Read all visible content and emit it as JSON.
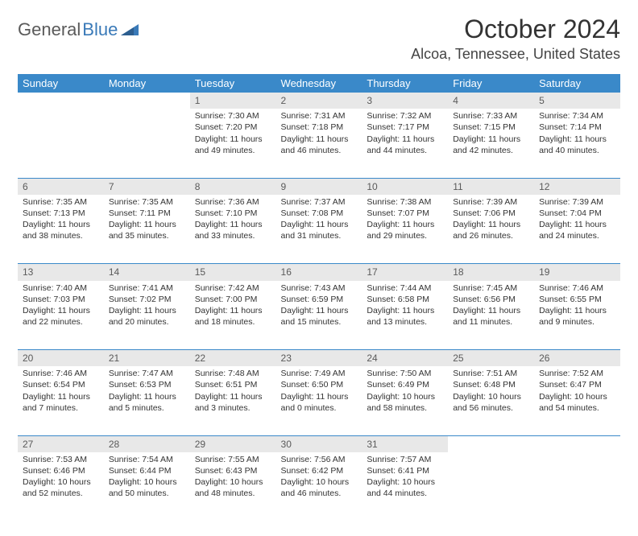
{
  "logo": {
    "part1": "General",
    "part2": "Blue"
  },
  "title": "October 2024",
  "location": "Alcoa, Tennessee, United States",
  "colors": {
    "header_bg": "#3a89c9",
    "header_text": "#ffffff",
    "daynum_bg": "#e8e8e8",
    "divider": "#3a89c9",
    "body_text": "#333333",
    "location_text": "#444444"
  },
  "typography": {
    "title_fontsize": 32,
    "location_fontsize": 18,
    "weekday_fontsize": 13,
    "daynum_fontsize": 12,
    "cell_fontsize": 10.5
  },
  "weekdays": [
    "Sunday",
    "Monday",
    "Tuesday",
    "Wednesday",
    "Thursday",
    "Friday",
    "Saturday"
  ],
  "weeks": [
    [
      null,
      null,
      {
        "n": "1",
        "sr": "Sunrise: 7:30 AM",
        "ss": "Sunset: 7:20 PM",
        "d1": "Daylight: 11 hours",
        "d2": "and 49 minutes."
      },
      {
        "n": "2",
        "sr": "Sunrise: 7:31 AM",
        "ss": "Sunset: 7:18 PM",
        "d1": "Daylight: 11 hours",
        "d2": "and 46 minutes."
      },
      {
        "n": "3",
        "sr": "Sunrise: 7:32 AM",
        "ss": "Sunset: 7:17 PM",
        "d1": "Daylight: 11 hours",
        "d2": "and 44 minutes."
      },
      {
        "n": "4",
        "sr": "Sunrise: 7:33 AM",
        "ss": "Sunset: 7:15 PM",
        "d1": "Daylight: 11 hours",
        "d2": "and 42 minutes."
      },
      {
        "n": "5",
        "sr": "Sunrise: 7:34 AM",
        "ss": "Sunset: 7:14 PM",
        "d1": "Daylight: 11 hours",
        "d2": "and 40 minutes."
      }
    ],
    [
      {
        "n": "6",
        "sr": "Sunrise: 7:35 AM",
        "ss": "Sunset: 7:13 PM",
        "d1": "Daylight: 11 hours",
        "d2": "and 38 minutes."
      },
      {
        "n": "7",
        "sr": "Sunrise: 7:35 AM",
        "ss": "Sunset: 7:11 PM",
        "d1": "Daylight: 11 hours",
        "d2": "and 35 minutes."
      },
      {
        "n": "8",
        "sr": "Sunrise: 7:36 AM",
        "ss": "Sunset: 7:10 PM",
        "d1": "Daylight: 11 hours",
        "d2": "and 33 minutes."
      },
      {
        "n": "9",
        "sr": "Sunrise: 7:37 AM",
        "ss": "Sunset: 7:08 PM",
        "d1": "Daylight: 11 hours",
        "d2": "and 31 minutes."
      },
      {
        "n": "10",
        "sr": "Sunrise: 7:38 AM",
        "ss": "Sunset: 7:07 PM",
        "d1": "Daylight: 11 hours",
        "d2": "and 29 minutes."
      },
      {
        "n": "11",
        "sr": "Sunrise: 7:39 AM",
        "ss": "Sunset: 7:06 PM",
        "d1": "Daylight: 11 hours",
        "d2": "and 26 minutes."
      },
      {
        "n": "12",
        "sr": "Sunrise: 7:39 AM",
        "ss": "Sunset: 7:04 PM",
        "d1": "Daylight: 11 hours",
        "d2": "and 24 minutes."
      }
    ],
    [
      {
        "n": "13",
        "sr": "Sunrise: 7:40 AM",
        "ss": "Sunset: 7:03 PM",
        "d1": "Daylight: 11 hours",
        "d2": "and 22 minutes."
      },
      {
        "n": "14",
        "sr": "Sunrise: 7:41 AM",
        "ss": "Sunset: 7:02 PM",
        "d1": "Daylight: 11 hours",
        "d2": "and 20 minutes."
      },
      {
        "n": "15",
        "sr": "Sunrise: 7:42 AM",
        "ss": "Sunset: 7:00 PM",
        "d1": "Daylight: 11 hours",
        "d2": "and 18 minutes."
      },
      {
        "n": "16",
        "sr": "Sunrise: 7:43 AM",
        "ss": "Sunset: 6:59 PM",
        "d1": "Daylight: 11 hours",
        "d2": "and 15 minutes."
      },
      {
        "n": "17",
        "sr": "Sunrise: 7:44 AM",
        "ss": "Sunset: 6:58 PM",
        "d1": "Daylight: 11 hours",
        "d2": "and 13 minutes."
      },
      {
        "n": "18",
        "sr": "Sunrise: 7:45 AM",
        "ss": "Sunset: 6:56 PM",
        "d1": "Daylight: 11 hours",
        "d2": "and 11 minutes."
      },
      {
        "n": "19",
        "sr": "Sunrise: 7:46 AM",
        "ss": "Sunset: 6:55 PM",
        "d1": "Daylight: 11 hours",
        "d2": "and 9 minutes."
      }
    ],
    [
      {
        "n": "20",
        "sr": "Sunrise: 7:46 AM",
        "ss": "Sunset: 6:54 PM",
        "d1": "Daylight: 11 hours",
        "d2": "and 7 minutes."
      },
      {
        "n": "21",
        "sr": "Sunrise: 7:47 AM",
        "ss": "Sunset: 6:53 PM",
        "d1": "Daylight: 11 hours",
        "d2": "and 5 minutes."
      },
      {
        "n": "22",
        "sr": "Sunrise: 7:48 AM",
        "ss": "Sunset: 6:51 PM",
        "d1": "Daylight: 11 hours",
        "d2": "and 3 minutes."
      },
      {
        "n": "23",
        "sr": "Sunrise: 7:49 AM",
        "ss": "Sunset: 6:50 PM",
        "d1": "Daylight: 11 hours",
        "d2": "and 0 minutes."
      },
      {
        "n": "24",
        "sr": "Sunrise: 7:50 AM",
        "ss": "Sunset: 6:49 PM",
        "d1": "Daylight: 10 hours",
        "d2": "and 58 minutes."
      },
      {
        "n": "25",
        "sr": "Sunrise: 7:51 AM",
        "ss": "Sunset: 6:48 PM",
        "d1": "Daylight: 10 hours",
        "d2": "and 56 minutes."
      },
      {
        "n": "26",
        "sr": "Sunrise: 7:52 AM",
        "ss": "Sunset: 6:47 PM",
        "d1": "Daylight: 10 hours",
        "d2": "and 54 minutes."
      }
    ],
    [
      {
        "n": "27",
        "sr": "Sunrise: 7:53 AM",
        "ss": "Sunset: 6:46 PM",
        "d1": "Daylight: 10 hours",
        "d2": "and 52 minutes."
      },
      {
        "n": "28",
        "sr": "Sunrise: 7:54 AM",
        "ss": "Sunset: 6:44 PM",
        "d1": "Daylight: 10 hours",
        "d2": "and 50 minutes."
      },
      {
        "n": "29",
        "sr": "Sunrise: 7:55 AM",
        "ss": "Sunset: 6:43 PM",
        "d1": "Daylight: 10 hours",
        "d2": "and 48 minutes."
      },
      {
        "n": "30",
        "sr": "Sunrise: 7:56 AM",
        "ss": "Sunset: 6:42 PM",
        "d1": "Daylight: 10 hours",
        "d2": "and 46 minutes."
      },
      {
        "n": "31",
        "sr": "Sunrise: 7:57 AM",
        "ss": "Sunset: 6:41 PM",
        "d1": "Daylight: 10 hours",
        "d2": "and 44 minutes."
      },
      null,
      null
    ]
  ]
}
